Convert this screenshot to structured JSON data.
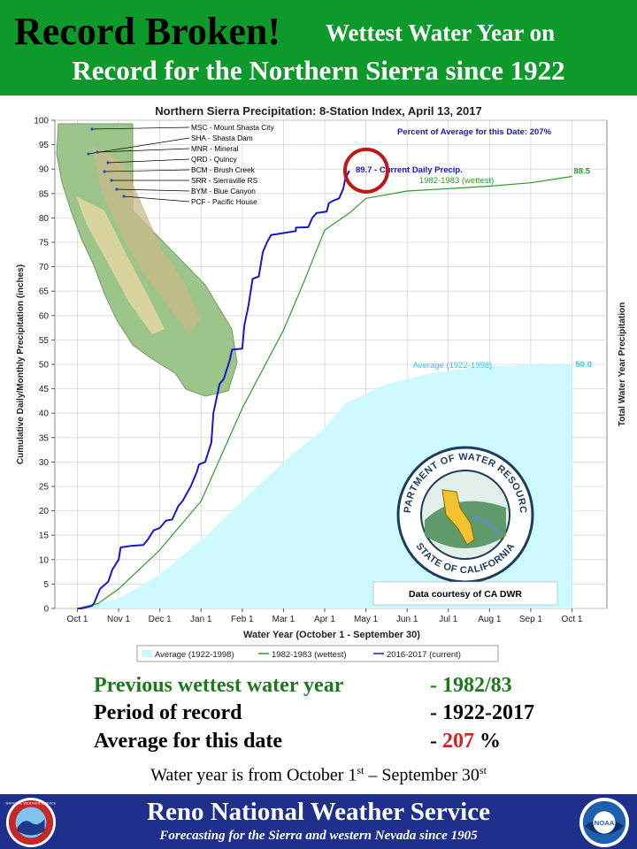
{
  "banner": {
    "headline": "Record Broken!",
    "line1": "Wettest Water Year on",
    "line2": "Record for the Northern Sierra since 1922"
  },
  "chart_data": {
    "type": "line",
    "title": "Northern Sierra Precipitation: 8-Station Index, April 13, 2017",
    "xlabel": "Water Year (October 1 - September 30)",
    "ylabel": "Cumulative Daily/Monthly Precipitation (inches)",
    "ylabel_right": "Total Water Year Precipitation",
    "x_ticks": [
      "Oct 1",
      "Nov 1",
      "Dec 1",
      "Jan 1",
      "Feb 1",
      "Mar 1",
      "Apr 1",
      "May 1",
      "Jun 1",
      "Jul 1",
      "Aug 1",
      "Sep 1",
      "Oct 1"
    ],
    "ylim": [
      0,
      100
    ],
    "y_ticks": [
      0,
      5,
      10,
      15,
      20,
      25,
      30,
      35,
      40,
      45,
      50,
      55,
      60,
      65,
      70,
      75,
      80,
      85,
      90,
      95,
      100
    ],
    "grid": true,
    "percent_note": "Percent of Average for this Date: 207%",
    "legend": [
      "Average (1922-1998)",
      "1982-1983 (wettest)",
      "2016-2017 (current)"
    ],
    "series": [
      {
        "name": "Average (1922-1998)",
        "color": "#ccfaff",
        "style": "area",
        "end_label": "50.0",
        "inline_label": "Average (1922-1998)",
        "points": [
          [
            0,
            0
          ],
          [
            1,
            2
          ],
          [
            2,
            7
          ],
          [
            3,
            14
          ],
          [
            4,
            22
          ],
          [
            5,
            30
          ],
          [
            6,
            37
          ],
          [
            6.5,
            42
          ],
          [
            7,
            44
          ],
          [
            7.5,
            46
          ],
          [
            8,
            47
          ],
          [
            8.5,
            48
          ],
          [
            9,
            48.7
          ],
          [
            9.5,
            49.2
          ],
          [
            10,
            49.6
          ],
          [
            11,
            49.9
          ],
          [
            12,
            50
          ]
        ]
      },
      {
        "name": "1982-1983 (wettest)",
        "color": "#2e9c2e",
        "style": "line",
        "end_label": "88.5",
        "inline_label": "1982-1983 (wettest)",
        "points": [
          [
            0,
            0
          ],
          [
            0.5,
            1
          ],
          [
            1,
            4
          ],
          [
            2,
            12
          ],
          [
            3,
            22
          ],
          [
            4,
            41
          ],
          [
            5,
            57
          ],
          [
            5.5,
            67
          ],
          [
            6,
            77.5
          ],
          [
            6.6,
            81
          ],
          [
            7,
            84
          ],
          [
            8,
            85.5
          ],
          [
            9,
            86
          ],
          [
            10,
            86.5
          ],
          [
            11,
            87.2
          ],
          [
            12,
            88.5
          ]
        ]
      },
      {
        "name": "2016-2017 (current)",
        "color": "#1818cc",
        "style": "line",
        "end_label": "89.7 - Current Daily Precip.",
        "points": [
          [
            0,
            0
          ],
          [
            0.1,
            0
          ],
          [
            0.35,
            0.5
          ],
          [
            0.4,
            1
          ],
          [
            0.55,
            4
          ],
          [
            0.75,
            5.5
          ],
          [
            0.85,
            8
          ],
          [
            1,
            10
          ],
          [
            1.05,
            12.5
          ],
          [
            1.3,
            12.8
          ],
          [
            1.6,
            13
          ],
          [
            1.7,
            14
          ],
          [
            1.85,
            16
          ],
          [
            2,
            16.5
          ],
          [
            2.15,
            18
          ],
          [
            2.3,
            18.2
          ],
          [
            2.45,
            21
          ],
          [
            2.55,
            22
          ],
          [
            2.75,
            25
          ],
          [
            2.9,
            28
          ],
          [
            2.95,
            29.5
          ],
          [
            3.1,
            30
          ],
          [
            3.25,
            34
          ],
          [
            3.3,
            40
          ],
          [
            3.45,
            46
          ],
          [
            3.55,
            47
          ],
          [
            3.7,
            51
          ],
          [
            3.75,
            53
          ],
          [
            4,
            53.2
          ],
          [
            4.05,
            58
          ],
          [
            4.15,
            62
          ],
          [
            4.25,
            67.5
          ],
          [
            4.4,
            68
          ],
          [
            4.5,
            73
          ],
          [
            4.6,
            75
          ],
          [
            4.7,
            76.5
          ],
          [
            5.3,
            77.3
          ],
          [
            5.3,
            78
          ],
          [
            5.6,
            78.1
          ],
          [
            5.7,
            80
          ],
          [
            5.8,
            81
          ],
          [
            6.05,
            81.3
          ],
          [
            6.1,
            83
          ],
          [
            6.2,
            83.5
          ],
          [
            6.35,
            84
          ],
          [
            6.45,
            86
          ],
          [
            6.5,
            88
          ],
          [
            6.6,
            89.7
          ]
        ]
      }
    ]
  },
  "map": {
    "stations": [
      "MSC - Mount Shasta City",
      "SHA - Shasta Dam",
      "MNR - Mineral",
      "QRD - Quincy",
      "BCM - Brush Creek",
      "SRR - Sierraville RS",
      "BYM - Blue Canyon",
      "PCF - Pacific House"
    ]
  },
  "dwr_logo": {
    "text_top": "DEPARTMENT OF WATER RESOURCES",
    "text_bottom": "STATE OF CALIFORNIA",
    "credit": "Data courtesy of CA DWR"
  },
  "summary": [
    {
      "label": "Previous wettest water year",
      "value": "- 1982/83",
      "color": "#1c7a1c"
    },
    {
      "label": "Period of record",
      "value": "- 1922-2017",
      "color": "#000000"
    },
    {
      "label": "Average for this date",
      "value_prefix": "- ",
      "value_highlight": "207",
      "value_suffix": " %",
      "color": "#000000",
      "highlight_color": "#d42020"
    }
  ],
  "footnote": {
    "before": "Water year is from October 1",
    "sup1": "st",
    "middle": " – September 30",
    "sup2": "st"
  },
  "footer": {
    "title": "Reno National Weather Service",
    "subtitle": "Forecasting for the Sierra and western Nevada since 1905",
    "left_logo_text": "NATIONAL WEATHER SERVICE",
    "right_logo_text": "NOAA"
  },
  "colors": {
    "banner_green": "#0d9a2b",
    "footer_blue": "#1f2f8c",
    "highlight_circle": "#c01818"
  }
}
